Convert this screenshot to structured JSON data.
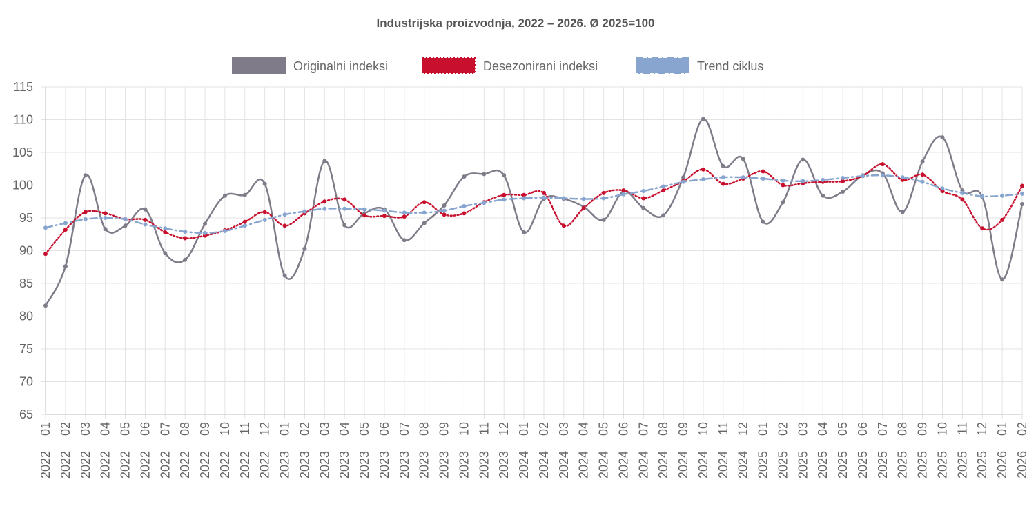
{
  "chart_data": {
    "type": "line",
    "title": "Industrijska proizvodnja, 2022 – 2026.   Ø 2025=100",
    "ylim": [
      65,
      115
    ],
    "yticks": [
      65,
      70,
      75,
      80,
      85,
      90,
      95,
      100,
      105,
      110,
      115
    ],
    "grid": true,
    "legend_position": "top-center",
    "categories": [
      {
        "month": "01",
        "year": "2022"
      },
      {
        "month": "02",
        "year": "2022"
      },
      {
        "month": "03",
        "year": "2022"
      },
      {
        "month": "04",
        "year": "2022"
      },
      {
        "month": "05",
        "year": "2022"
      },
      {
        "month": "06",
        "year": "2022"
      },
      {
        "month": "07",
        "year": "2022"
      },
      {
        "month": "08",
        "year": "2022"
      },
      {
        "month": "09",
        "year": "2022"
      },
      {
        "month": "10",
        "year": "2022"
      },
      {
        "month": "11",
        "year": "2022"
      },
      {
        "month": "12",
        "year": "2022"
      },
      {
        "month": "01",
        "year": "2023"
      },
      {
        "month": "02",
        "year": "2023"
      },
      {
        "month": "03",
        "year": "2023"
      },
      {
        "month": "04",
        "year": "2023"
      },
      {
        "month": "05",
        "year": "2023"
      },
      {
        "month": "06",
        "year": "2023"
      },
      {
        "month": "07",
        "year": "2023"
      },
      {
        "month": "08",
        "year": "2023"
      },
      {
        "month": "09",
        "year": "2023"
      },
      {
        "month": "10",
        "year": "2023"
      },
      {
        "month": "11",
        "year": "2023"
      },
      {
        "month": "12",
        "year": "2023"
      },
      {
        "month": "01",
        "year": "2024"
      },
      {
        "month": "02",
        "year": "2024"
      },
      {
        "month": "03",
        "year": "2024"
      },
      {
        "month": "04",
        "year": "2024"
      },
      {
        "month": "05",
        "year": "2024"
      },
      {
        "month": "06",
        "year": "2024"
      },
      {
        "month": "07",
        "year": "2024"
      },
      {
        "month": "08",
        "year": "2024"
      },
      {
        "month": "09",
        "year": "2024"
      },
      {
        "month": "10",
        "year": "2024"
      },
      {
        "month": "11",
        "year": "2024"
      },
      {
        "month": "12",
        "year": "2024"
      },
      {
        "month": "01",
        "year": "2025"
      },
      {
        "month": "02",
        "year": "2025"
      },
      {
        "month": "03",
        "year": "2025"
      },
      {
        "month": "04",
        "year": "2025"
      },
      {
        "month": "05",
        "year": "2025"
      },
      {
        "month": "06",
        "year": "2025"
      },
      {
        "month": "07",
        "year": "2025"
      },
      {
        "month": "08",
        "year": "2025"
      },
      {
        "month": "09",
        "year": "2025"
      },
      {
        "month": "10",
        "year": "2025"
      },
      {
        "month": "11",
        "year": "2025"
      },
      {
        "month": "12",
        "year": "2025"
      },
      {
        "month": "01",
        "year": "2026"
      },
      {
        "month": "02",
        "year": "2026"
      }
    ],
    "series": [
      {
        "name": "Originalni indeksi",
        "color": "#7f7b88",
        "style": "solid",
        "values": [
          81.6,
          87.6,
          101.5,
          93.3,
          93.8,
          96.3,
          89.6,
          88.6,
          94.1,
          98.4,
          98.5,
          100.2,
          86.2,
          90.3,
          103.7,
          93.9,
          95.7,
          96.3,
          91.6,
          94.2,
          96.9,
          101.3,
          101.7,
          101.5,
          92.8,
          97.9,
          97.9,
          96.7,
          94.7,
          99.0,
          96.5,
          95.4,
          101.2,
          110.1,
          102.9,
          104.0,
          94.4,
          97.4,
          103.9,
          98.4,
          99.0,
          101.5,
          101.8,
          95.9,
          103.6,
          107.3,
          99.2,
          98.2,
          85.6,
          97.1
        ]
      },
      {
        "name": "Desezonirani indeksi",
        "color": "#c8102e",
        "style": "dotted",
        "values": [
          89.5,
          93.2,
          95.9,
          95.7,
          94.8,
          94.7,
          92.8,
          91.9,
          92.3,
          93.1,
          94.4,
          95.9,
          93.8,
          95.7,
          97.5,
          97.8,
          95.4,
          95.3,
          95.2,
          97.4,
          95.5,
          95.7,
          97.4,
          98.5,
          98.5,
          98.8,
          93.8,
          96.5,
          98.8,
          99.2,
          98.0,
          99.2,
          100.6,
          102.4,
          100.2,
          101.0,
          102.1,
          100.0,
          100.3,
          100.5,
          100.6,
          101.4,
          103.2,
          100.8,
          101.6,
          99.1,
          97.8,
          93.4,
          94.7,
          99.9
        ]
      },
      {
        "name": "Trend ciklus",
        "color": "#87a5cf",
        "style": "dashdot",
        "values": [
          93.5,
          94.2,
          94.8,
          95.0,
          94.8,
          94.0,
          93.4,
          92.9,
          92.7,
          93.0,
          93.8,
          94.7,
          95.5,
          96.0,
          96.4,
          96.4,
          96.3,
          96.1,
          95.8,
          95.8,
          96.1,
          96.8,
          97.3,
          97.8,
          98.0,
          98.1,
          98.0,
          97.9,
          98.0,
          98.6,
          99.1,
          99.8,
          100.5,
          100.9,
          101.2,
          101.2,
          101.0,
          100.7,
          100.6,
          100.8,
          101.1,
          101.4,
          101.5,
          101.2,
          100.5,
          99.5,
          98.8,
          98.3,
          98.4,
          98.7
        ]
      }
    ]
  }
}
